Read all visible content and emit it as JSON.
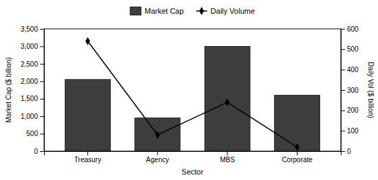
{
  "chart_data": {
    "type": "bar",
    "categories": [
      "Treasury",
      "Agency",
      "MBS",
      "Corporate"
    ],
    "series": [
      {
        "name": "Market Cap",
        "type": "bar",
        "color": "#3d3d3d",
        "values": [
          2050,
          950,
          3000,
          1600
        ]
      },
      {
        "name": "Daily Volume",
        "type": "line",
        "color": "#000000",
        "marker": "diamond",
        "line_style": "solid",
        "axis": "y2",
        "values": [
          540,
          80,
          240,
          20
        ]
      }
    ],
    "xlabel": "Sector",
    "ylabel": "Market Cap ($ billion)",
    "y2label": "Daily Vol ($ billion)",
    "ylim": [
      0,
      3500
    ],
    "yticks": [
      0,
      500,
      {
        "value": 1000,
        "label": "1,000"
      },
      {
        "value": 1500,
        "label": "1,500"
      },
      {
        "value": 2000,
        "label": "2,000"
      },
      {
        "value": 2500,
        "label": "2,500"
      },
      {
        "value": 3000,
        "label": "3,000"
      },
      {
        "value": 3500,
        "label": "3,500"
      }
    ],
    "y2lim": [
      0,
      600
    ],
    "y2ticks": [
      0,
      100,
      200,
      300,
      400,
      500,
      600
    ],
    "grid": false,
    "legend": "top"
  }
}
